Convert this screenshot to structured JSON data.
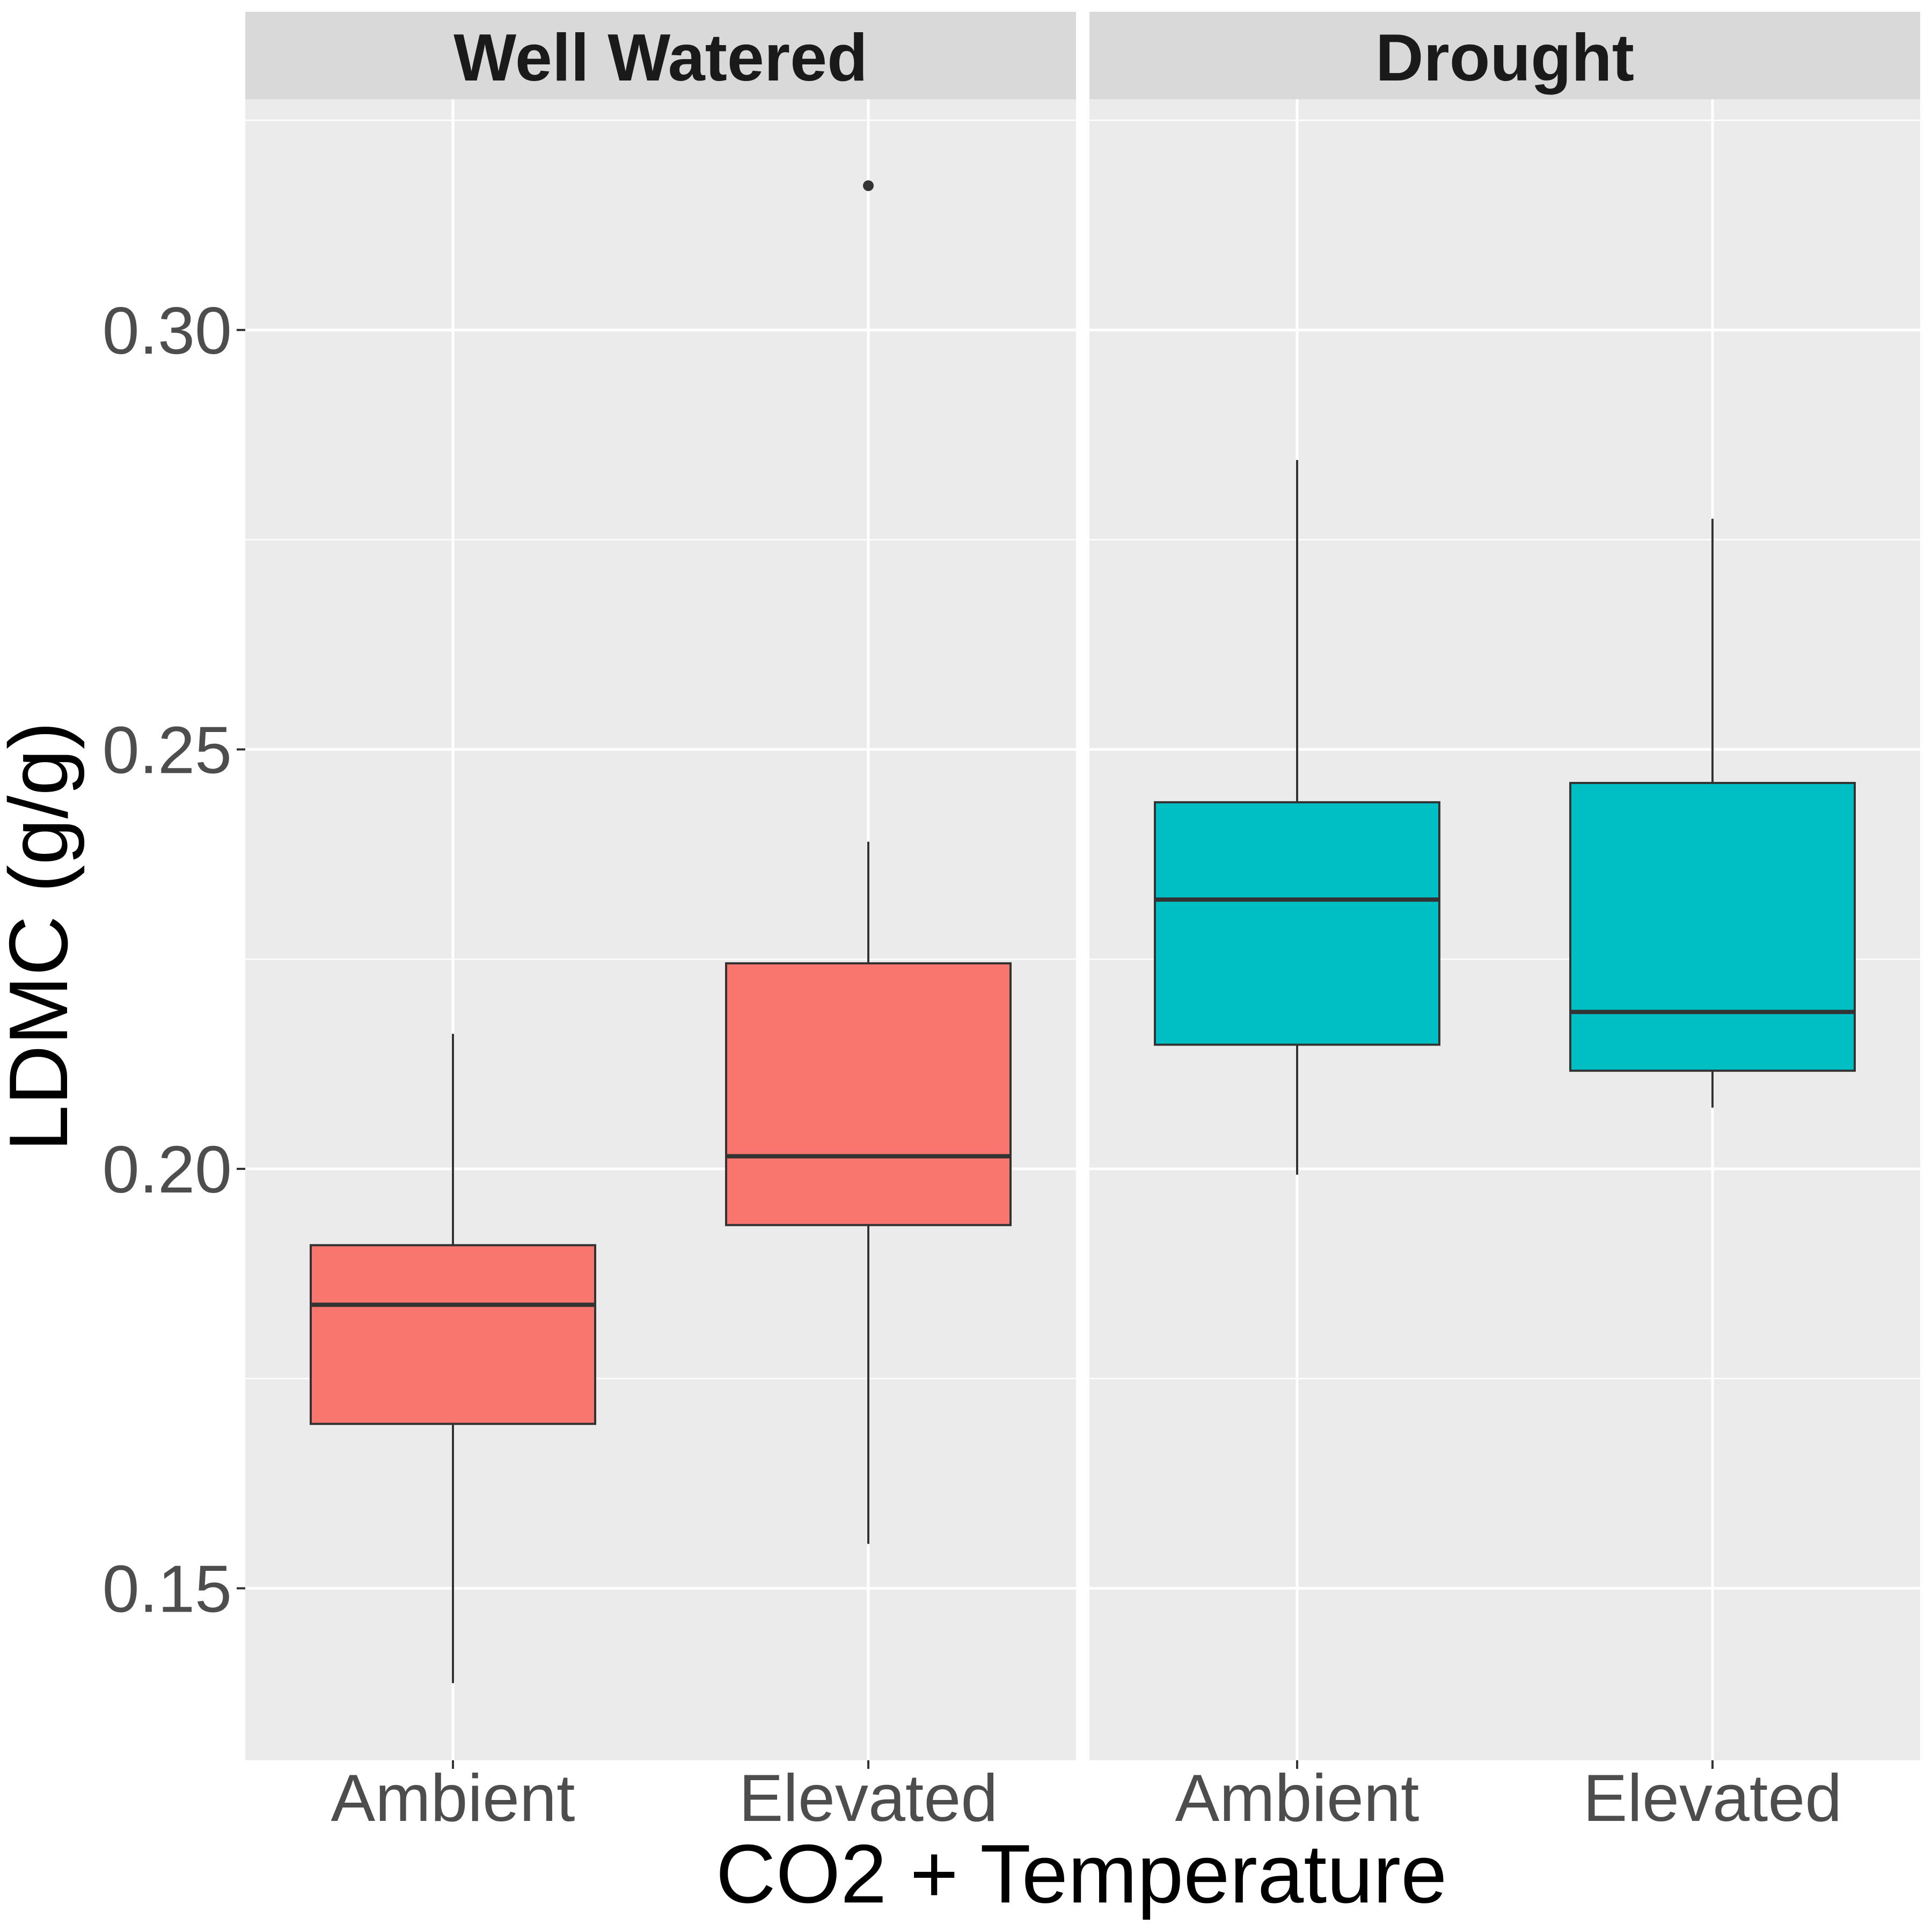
{
  "chart_data": {
    "type": "box",
    "xlabel": "CO2 + Temperature",
    "ylabel": "LDMC (g/g)",
    "ylim": [
      0.1295,
      0.3275
    ],
    "yticks": [
      0.15,
      0.2,
      0.25,
      0.3
    ],
    "ytick_labels": [
      "0.15",
      "0.20",
      "0.25",
      "0.30"
    ],
    "categories": [
      "Ambient",
      "Elevated"
    ],
    "grid": true,
    "panels": [
      {
        "label": "Well Watered",
        "fill": "#F8766D",
        "boxes": [
          {
            "category": "Ambient",
            "whisker_low": 0.1387,
            "q1": 0.1696,
            "median": 0.1838,
            "q3": 0.1909,
            "whisker_high": 0.2161,
            "outliers": []
          },
          {
            "category": "Elevated",
            "whisker_low": 0.1553,
            "q1": 0.1933,
            "median": 0.2015,
            "q3": 0.2245,
            "whisker_high": 0.239,
            "outliers": [
              0.3172
            ]
          }
        ]
      },
      {
        "label": "Drought",
        "fill": "#00BFC4",
        "boxes": [
          {
            "category": "Ambient",
            "whisker_low": 0.1993,
            "q1": 0.2148,
            "median": 0.2321,
            "q3": 0.2437,
            "whisker_high": 0.2845,
            "outliers": []
          },
          {
            "category": "Elevated",
            "whisker_low": 0.2073,
            "q1": 0.2117,
            "median": 0.2187,
            "q3": 0.246,
            "whisker_high": 0.2775,
            "outliers": []
          }
        ]
      }
    ]
  }
}
